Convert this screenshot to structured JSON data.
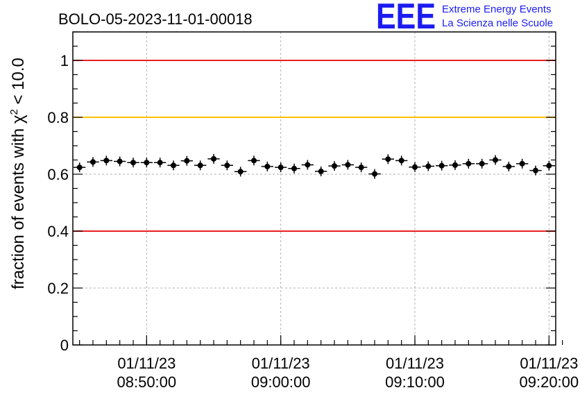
{
  "logo": {
    "mark": "EEE",
    "line1": "Extreme Energy Events",
    "line2": "La Scienza nelle Scuole",
    "color": "#1c1cf0"
  },
  "chart_data": {
    "type": "scatter",
    "title": "BOLO-05-2023-11-01-00018",
    "ylabel_prefix": "fraction of events with χ",
    "ylabel_sup": "2",
    "ylabel_suffix": " < 10.0",
    "ylim": [
      0,
      1.1
    ],
    "yticks": [
      0,
      0.2,
      0.4,
      0.6,
      0.8,
      1
    ],
    "ytick_labels": [
      "0",
      "0.2",
      "0.4",
      "0.6",
      "0.8",
      "1"
    ],
    "x_range_minutes": [
      0,
      36
    ],
    "xticks": [
      {
        "t": 5.5,
        "date": "01/11/23",
        "time": "08:50:00"
      },
      {
        "t": 15.5,
        "date": "01/11/23",
        "time": "09:00:00"
      },
      {
        "t": 25.5,
        "date": "01/11/23",
        "time": "09:10:00"
      },
      {
        "t": 35.5,
        "date": "01/11/23",
        "time": "09:20:00"
      }
    ],
    "grid": true,
    "reference_lines": [
      {
        "y": 1.0,
        "color": "#e8201e"
      },
      {
        "y": 0.8,
        "color": "#ffc000"
      },
      {
        "y": 0.4,
        "color": "#e8201e"
      }
    ],
    "series": [
      {
        "color": "#000000",
        "values": [
          0.624,
          0.643,
          0.648,
          0.645,
          0.641,
          0.641,
          0.641,
          0.631,
          0.647,
          0.631,
          0.654,
          0.631,
          0.609,
          0.648,
          0.627,
          0.624,
          0.62,
          0.633,
          0.61,
          0.629,
          0.633,
          0.624,
          0.601,
          0.653,
          0.648,
          0.625,
          0.628,
          0.63,
          0.632,
          0.637,
          0.637,
          0.65,
          0.627,
          0.637,
          0.613,
          0.63
        ]
      }
    ]
  }
}
